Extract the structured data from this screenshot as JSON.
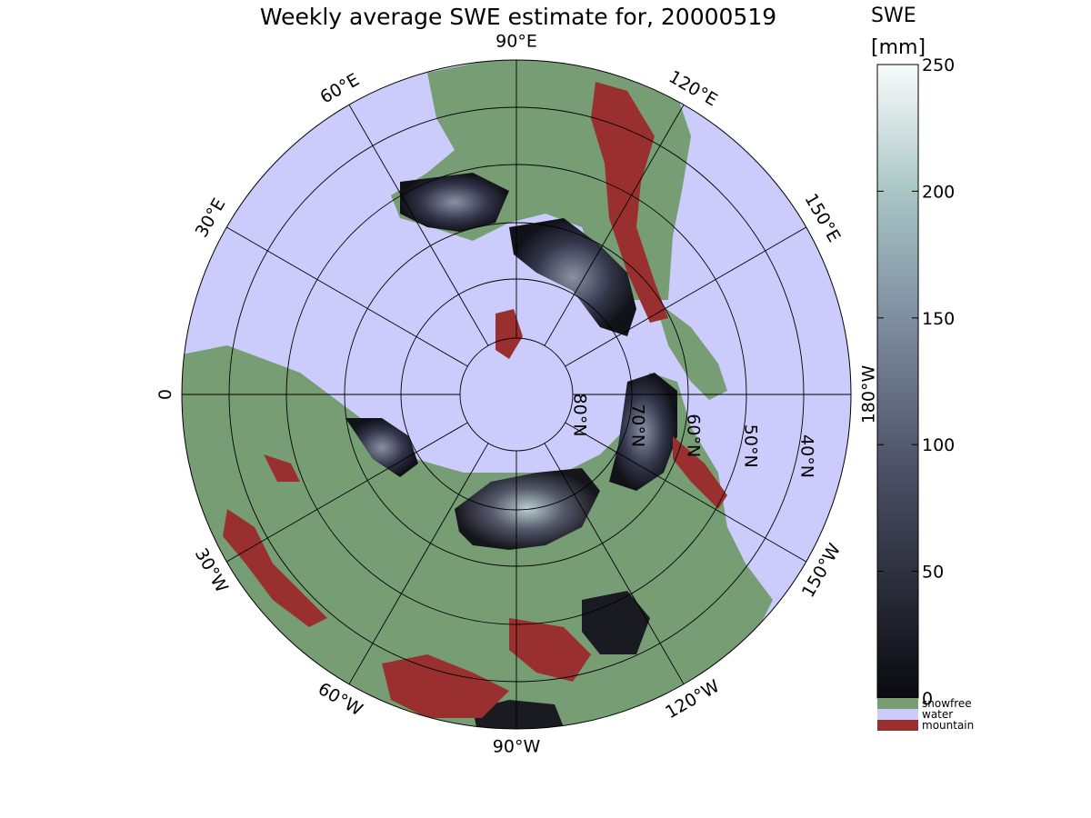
{
  "title": "Weekly average SWE estimate for, 20000519",
  "colorbar": {
    "title": "SWE",
    "unit": "[mm]",
    "ticks": [
      {
        "value": 0,
        "label": "0"
      },
      {
        "value": 50,
        "label": "50"
      },
      {
        "value": 100,
        "label": "100"
      },
      {
        "value": 150,
        "label": "150"
      },
      {
        "value": 200,
        "label": "200"
      },
      {
        "value": 250,
        "label": "250"
      }
    ],
    "range": [
      0,
      250
    ],
    "color_low": "#0a0a0f",
    "color_mid": "#5c6179",
    "color_high": "#f8fcfb"
  },
  "legend": [
    {
      "label": "snowfree",
      "color": "#779d74"
    },
    {
      "label": "water",
      "color": "#ccccfc"
    },
    {
      "label": "mountain",
      "color": "#9a2f2f"
    }
  ],
  "map": {
    "ocean_color": "#ccccfc",
    "land_color": "#779d74",
    "mountain_color": "#9a2f2f",
    "longitude_labels": [
      "90°W",
      "60°W",
      "30°W",
      "0",
      "30°E",
      "60°E",
      "90°E",
      "120°E",
      "150°E",
      "180°W",
      "150°W",
      "120°W"
    ],
    "latitude_labels": [
      "80°N",
      "70°N",
      "60°N",
      "50°N",
      "40°N"
    ]
  }
}
